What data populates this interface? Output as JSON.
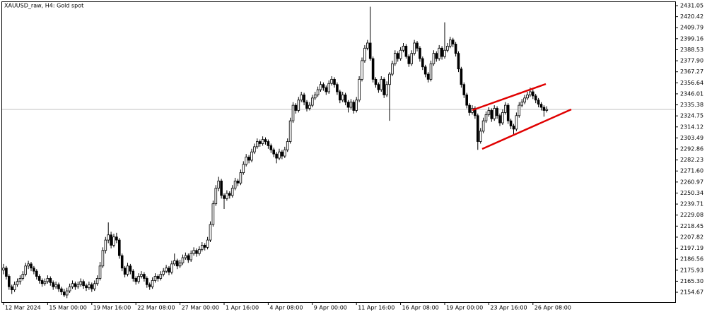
{
  "chart_data": {
    "type": "candlestick",
    "title": "XAUUSD_raw, H4:  Gold spot",
    "up_color": "#ffffff",
    "down_color": "#000000",
    "bid": 2331,
    "ylim": [
      2145.16,
      2434.45
    ],
    "yticks": [
      2154.67,
      2165.3,
      2175.93,
      2186.56,
      2197.19,
      2207.82,
      2218.45,
      2229.08,
      2239.71,
      2250.34,
      2260.97,
      2271.6,
      2282.23,
      2292.86,
      2303.49,
      2314.12,
      2324.75,
      2335.38,
      2346.01,
      2356.64,
      2367.27,
      2377.9,
      2388.53,
      2399.16,
      2409.79,
      2420.42,
      2431.05
    ],
    "ytick_labels": [
      "2154.67",
      "2165.30",
      "2175.93",
      "2186.56",
      "2197.19",
      "2207.82",
      "2218.45",
      "2229.08",
      "2239.71",
      "2250.34",
      "2260.97",
      "2271.60",
      "2282.23",
      "2292.86",
      "2303.49",
      "2314.12",
      "2324.75",
      "2335.38",
      "2346.01",
      "2356.64",
      "2367.27",
      "2377.90",
      "2388.53",
      "2399.16",
      "2409.79",
      "2420.42",
      "2431.05"
    ],
    "categories": [
      "12 Mar 2024",
      null,
      null,
      null,
      null,
      null,
      null,
      null,
      null,
      null,
      null,
      null,
      null,
      null,
      null,
      null,
      "15 Mar 00:00",
      null,
      null,
      null,
      null,
      null,
      null,
      null,
      null,
      null,
      null,
      null,
      null,
      null,
      null,
      null,
      "19 Mar 16:00",
      null,
      null,
      null,
      null,
      null,
      null,
      null,
      null,
      null,
      null,
      null,
      null,
      null,
      null,
      null,
      "22 Mar 08:00",
      null,
      null,
      null,
      null,
      null,
      null,
      null,
      null,
      null,
      null,
      null,
      null,
      null,
      null,
      null,
      "27 Mar 00:00",
      null,
      null,
      null,
      null,
      null,
      null,
      null,
      null,
      null,
      null,
      null,
      null,
      null,
      null,
      null,
      "1 Apr 16:00",
      null,
      null,
      null,
      null,
      null,
      null,
      null,
      null,
      null,
      null,
      null,
      null,
      null,
      null,
      null,
      "4 Apr 08:00",
      null,
      null,
      null,
      null,
      null,
      null,
      null,
      null,
      null,
      null,
      null,
      null,
      null,
      null,
      null,
      "9 Apr 00:00",
      null,
      null,
      null,
      null,
      null,
      null,
      null,
      null,
      null,
      null,
      null,
      null,
      null,
      null,
      null,
      "11 Apr 16:00",
      null,
      null,
      null,
      null,
      null,
      null,
      null,
      null,
      null,
      null,
      null,
      null,
      null,
      null,
      null,
      "16 Apr 08:00",
      null,
      null,
      null,
      null,
      null,
      null,
      null,
      null,
      null,
      null,
      null,
      null,
      null,
      null,
      null,
      "19 Apr 00:00",
      null,
      null,
      null,
      null,
      null,
      null,
      null,
      null,
      null,
      null,
      null,
      null,
      null,
      null,
      null,
      "23 Apr 16:00",
      null,
      null,
      null,
      null,
      null,
      null,
      null,
      null,
      null,
      null,
      null,
      null,
      null,
      null,
      null,
      "26 Apr 08:00",
      null,
      null,
      null,
      null,
      null
    ],
    "ohlc": [
      [
        2176,
        2182,
        2172,
        2178
      ],
      [
        2178,
        2180,
        2167,
        2170
      ],
      [
        2170,
        2172,
        2157,
        2160
      ],
      [
        2160,
        2162,
        2153,
        2157
      ],
      [
        2157,
        2165,
        2155,
        2162
      ],
      [
        2162,
        2168,
        2160,
        2165
      ],
      [
        2165,
        2171,
        2162,
        2168
      ],
      [
        2168,
        2175,
        2166,
        2172
      ],
      [
        2172,
        2183,
        2170,
        2180
      ],
      [
        2180,
        2185,
        2177,
        2182
      ],
      [
        2182,
        2184,
        2175,
        2178
      ],
      [
        2178,
        2180,
        2172,
        2175
      ],
      [
        2175,
        2177,
        2167,
        2170
      ],
      [
        2170,
        2172,
        2163,
        2166
      ],
      [
        2166,
        2168,
        2160,
        2163
      ],
      [
        2163,
        2168,
        2161,
        2165
      ],
      [
        2165,
        2171,
        2163,
        2168
      ],
      [
        2168,
        2170,
        2161,
        2164
      ],
      [
        2164,
        2166,
        2157,
        2160
      ],
      [
        2160,
        2165,
        2158,
        2162
      ],
      [
        2162,
        2164,
        2155,
        2158
      ],
      [
        2158,
        2160,
        2152,
        2155
      ],
      [
        2155,
        2158,
        2150,
        2152
      ],
      [
        2152,
        2159,
        2149,
        2156
      ],
      [
        2156,
        2163,
        2154,
        2160
      ],
      [
        2160,
        2166,
        2158,
        2163
      ],
      [
        2163,
        2165,
        2157,
        2160
      ],
      [
        2160,
        2165,
        2158,
        2162
      ],
      [
        2162,
        2168,
        2160,
        2165
      ],
      [
        2165,
        2167,
        2158,
        2161
      ],
      [
        2161,
        2163,
        2156,
        2159
      ],
      [
        2159,
        2165,
        2157,
        2162
      ],
      [
        2162,
        2164,
        2155,
        2158
      ],
      [
        2158,
        2166,
        2156,
        2163
      ],
      [
        2163,
        2171,
        2161,
        2168
      ],
      [
        2168,
        2184,
        2166,
        2180
      ],
      [
        2180,
        2198,
        2178,
        2195
      ],
      [
        2195,
        2208,
        2192,
        2205
      ],
      [
        2205,
        2222,
        2202,
        2210
      ],
      [
        2210,
        2213,
        2197,
        2200
      ],
      [
        2200,
        2211,
        2198,
        2208
      ],
      [
        2208,
        2212,
        2202,
        2205
      ],
      [
        2205,
        2207,
        2187,
        2190
      ],
      [
        2190,
        2192,
        2175,
        2178
      ],
      [
        2178,
        2180,
        2169,
        2172
      ],
      [
        2172,
        2183,
        2170,
        2180
      ],
      [
        2180,
        2182,
        2172,
        2175
      ],
      [
        2175,
        2177,
        2165,
        2168
      ],
      [
        2168,
        2170,
        2162,
        2165
      ],
      [
        2165,
        2173,
        2163,
        2170
      ],
      [
        2170,
        2175,
        2168,
        2172
      ],
      [
        2172,
        2174,
        2165,
        2168
      ],
      [
        2168,
        2170,
        2159,
        2162
      ],
      [
        2162,
        2164,
        2157,
        2160
      ],
      [
        2160,
        2169,
        2158,
        2166
      ],
      [
        2166,
        2173,
        2164,
        2170
      ],
      [
        2170,
        2172,
        2165,
        2168
      ],
      [
        2168,
        2175,
        2166,
        2172
      ],
      [
        2172,
        2178,
        2170,
        2175
      ],
      [
        2175,
        2181,
        2173,
        2178
      ],
      [
        2178,
        2180,
        2171,
        2174
      ],
      [
        2174,
        2185,
        2172,
        2182
      ],
      [
        2182,
        2192,
        2180,
        2185
      ],
      [
        2185,
        2187,
        2177,
        2180
      ],
      [
        2180,
        2186,
        2178,
        2183
      ],
      [
        2183,
        2191,
        2181,
        2188
      ],
      [
        2188,
        2193,
        2186,
        2190
      ],
      [
        2190,
        2192,
        2183,
        2186
      ],
      [
        2186,
        2195,
        2184,
        2192
      ],
      [
        2192,
        2198,
        2190,
        2195
      ],
      [
        2195,
        2197,
        2189,
        2192
      ],
      [
        2192,
        2199,
        2190,
        2196
      ],
      [
        2196,
        2203,
        2194,
        2200
      ],
      [
        2200,
        2202,
        2195,
        2198
      ],
      [
        2198,
        2208,
        2196,
        2205
      ],
      [
        2205,
        2223,
        2203,
        2220
      ],
      [
        2220,
        2243,
        2218,
        2240
      ],
      [
        2240,
        2258,
        2238,
        2255
      ],
      [
        2255,
        2266,
        2252,
        2262
      ],
      [
        2262,
        2264,
        2245,
        2248
      ],
      [
        2248,
        2250,
        2235,
        2245
      ],
      [
        2245,
        2253,
        2243,
        2250
      ],
      [
        2250,
        2252,
        2245,
        2248
      ],
      [
        2248,
        2258,
        2246,
        2255
      ],
      [
        2255,
        2265,
        2253,
        2262
      ],
      [
        2262,
        2264,
        2257,
        2260
      ],
      [
        2260,
        2273,
        2258,
        2270
      ],
      [
        2270,
        2281,
        2268,
        2278
      ],
      [
        2278,
        2288,
        2276,
        2285
      ],
      [
        2285,
        2287,
        2279,
        2282
      ],
      [
        2282,
        2293,
        2280,
        2290
      ],
      [
        2290,
        2298,
        2288,
        2295
      ],
      [
        2295,
        2303,
        2293,
        2300
      ],
      [
        2300,
        2302,
        2295,
        2298
      ],
      [
        2298,
        2305,
        2296,
        2302
      ],
      [
        2302,
        2304,
        2297,
        2300
      ],
      [
        2300,
        2302,
        2293,
        2296
      ],
      [
        2296,
        2298,
        2289,
        2292
      ],
      [
        2292,
        2294,
        2285,
        2288
      ],
      [
        2288,
        2290,
        2279,
        2284
      ],
      [
        2284,
        2293,
        2282,
        2290
      ],
      [
        2290,
        2292,
        2283,
        2286
      ],
      [
        2286,
        2295,
        2284,
        2292
      ],
      [
        2292,
        2303,
        2290,
        2300
      ],
      [
        2300,
        2323,
        2298,
        2320
      ],
      [
        2320,
        2338,
        2318,
        2335
      ],
      [
        2335,
        2337,
        2327,
        2330
      ],
      [
        2330,
        2343,
        2328,
        2340
      ],
      [
        2340,
        2348,
        2338,
        2345
      ],
      [
        2345,
        2347,
        2335,
        2338
      ],
      [
        2338,
        2340,
        2329,
        2332
      ],
      [
        2332,
        2338,
        2330,
        2335
      ],
      [
        2335,
        2345,
        2333,
        2342
      ],
      [
        2342,
        2348,
        2340,
        2345
      ],
      [
        2345,
        2353,
        2343,
        2350
      ],
      [
        2350,
        2358,
        2348,
        2355
      ],
      [
        2355,
        2357,
        2349,
        2352
      ],
      [
        2352,
        2354,
        2345,
        2348
      ],
      [
        2348,
        2359,
        2346,
        2356
      ],
      [
        2356,
        2363,
        2354,
        2360
      ],
      [
        2360,
        2362,
        2352,
        2355
      ],
      [
        2355,
        2357,
        2345,
        2348
      ],
      [
        2348,
        2350,
        2337,
        2340
      ],
      [
        2340,
        2348,
        2338,
        2345
      ],
      [
        2345,
        2347,
        2335,
        2338
      ],
      [
        2338,
        2340,
        2328,
        2333
      ],
      [
        2333,
        2341,
        2331,
        2338
      ],
      [
        2338,
        2340,
        2327,
        2330
      ],
      [
        2330,
        2343,
        2328,
        2340
      ],
      [
        2340,
        2363,
        2338,
        2360
      ],
      [
        2360,
        2381,
        2358,
        2378
      ],
      [
        2378,
        2393,
        2376,
        2390
      ],
      [
        2390,
        2398,
        2388,
        2395
      ],
      [
        2395,
        2430,
        2378,
        2380
      ],
      [
        2380,
        2382,
        2357,
        2360
      ],
      [
        2360,
        2362,
        2352,
        2355
      ],
      [
        2355,
        2357,
        2347,
        2350
      ],
      [
        2350,
        2363,
        2348,
        2360
      ],
      [
        2360,
        2362,
        2342,
        2345
      ],
      [
        2345,
        2358,
        2343,
        2355
      ],
      [
        2355,
        2367,
        2320,
        2365
      ],
      [
        2365,
        2378,
        2363,
        2375
      ],
      [
        2375,
        2388,
        2373,
        2385
      ],
      [
        2385,
        2387,
        2377,
        2380
      ],
      [
        2380,
        2391,
        2378,
        2388
      ],
      [
        2388,
        2395,
        2386,
        2392
      ],
      [
        2392,
        2394,
        2380,
        2382
      ],
      [
        2382,
        2384,
        2372,
        2375
      ],
      [
        2375,
        2388,
        2373,
        2385
      ],
      [
        2385,
        2398,
        2383,
        2395
      ],
      [
        2395,
        2397,
        2387,
        2390
      ],
      [
        2390,
        2392,
        2377,
        2380
      ],
      [
        2380,
        2382,
        2369,
        2372
      ],
      [
        2372,
        2374,
        2362,
        2365
      ],
      [
        2365,
        2367,
        2357,
        2360
      ],
      [
        2360,
        2378,
        2358,
        2375
      ],
      [
        2375,
        2388,
        2373,
        2385
      ],
      [
        2385,
        2387,
        2377,
        2380
      ],
      [
        2380,
        2393,
        2378,
        2390
      ],
      [
        2390,
        2392,
        2379,
        2382
      ],
      [
        2382,
        2415,
        2380,
        2388
      ],
      [
        2388,
        2395,
        2386,
        2392
      ],
      [
        2392,
        2401,
        2390,
        2398
      ],
      [
        2398,
        2400,
        2391,
        2394
      ],
      [
        2394,
        2396,
        2382,
        2385
      ],
      [
        2385,
        2387,
        2367,
        2370
      ],
      [
        2370,
        2372,
        2352,
        2355
      ],
      [
        2355,
        2357,
        2342,
        2345
      ],
      [
        2345,
        2347,
        2332,
        2335
      ],
      [
        2335,
        2337,
        2325,
        2328
      ],
      [
        2328,
        2335,
        2326,
        2332
      ],
      [
        2332,
        2334,
        2322,
        2325
      ],
      [
        2325,
        2327,
        2292,
        2300
      ],
      [
        2300,
        2313,
        2298,
        2310
      ],
      [
        2310,
        2323,
        2308,
        2320
      ],
      [
        2320,
        2329,
        2318,
        2326
      ],
      [
        2326,
        2333,
        2324,
        2330
      ],
      [
        2330,
        2332,
        2319,
        2322
      ],
      [
        2322,
        2335,
        2320,
        2332
      ],
      [
        2332,
        2334,
        2322,
        2325
      ],
      [
        2325,
        2327,
        2315,
        2318
      ],
      [
        2318,
        2331,
        2316,
        2328
      ],
      [
        2328,
        2338,
        2326,
        2335
      ],
      [
        2335,
        2337,
        2317,
        2320
      ],
      [
        2320,
        2322,
        2312,
        2315
      ],
      [
        2315,
        2317,
        2306,
        2312
      ],
      [
        2312,
        2328,
        2310,
        2325
      ],
      [
        2325,
        2338,
        2323,
        2335
      ],
      [
        2335,
        2341,
        2333,
        2338
      ],
      [
        2338,
        2345,
        2336,
        2342
      ],
      [
        2342,
        2348,
        2340,
        2345
      ],
      [
        2345,
        2352,
        2343,
        2348
      ],
      [
        2348,
        2350,
        2341,
        2344
      ],
      [
        2344,
        2346,
        2337,
        2340
      ],
      [
        2340,
        2342,
        2333,
        2336
      ],
      [
        2336,
        2338,
        2330,
        2333
      ],
      [
        2333,
        2335,
        2324,
        2330
      ],
      [
        2330,
        2334,
        2328,
        2331
      ]
    ]
  }
}
